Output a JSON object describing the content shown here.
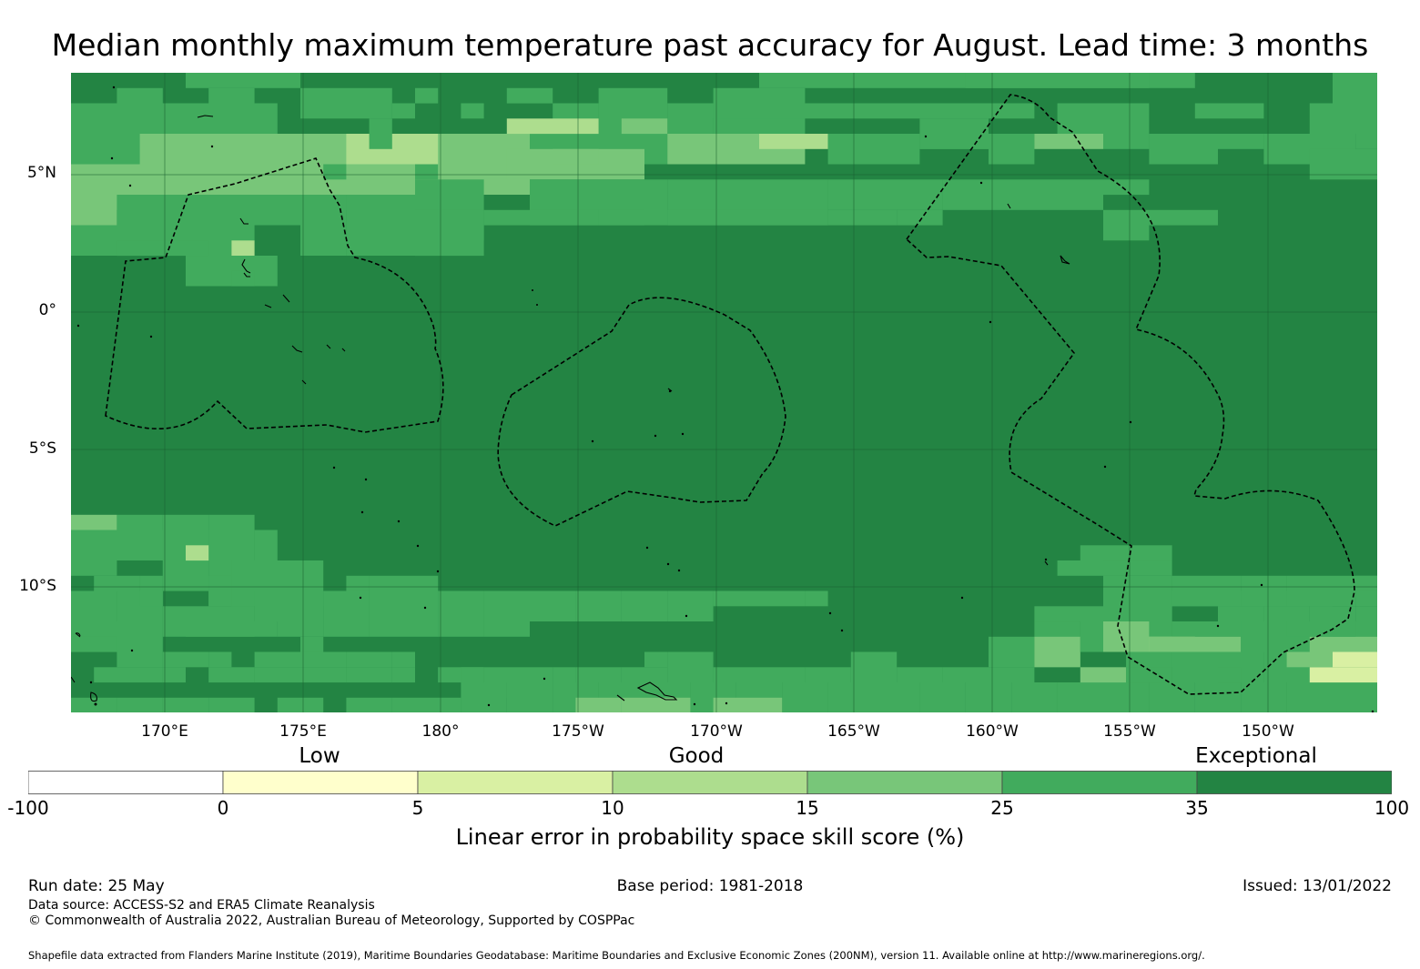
{
  "title": "Median monthly maximum temperature past accuracy for August. Lead time: 3 months",
  "map": {
    "lat_labels": [
      "5°N",
      "0°",
      "5°S",
      "10°S"
    ],
    "lon_labels": [
      "170°E",
      "175°E",
      "180°",
      "175°W",
      "170°W",
      "165°W",
      "160°W",
      "155°W",
      "150°W"
    ],
    "background_color": "#238443",
    "palette": {
      "lt0": "#ffffff",
      "p0_5": "#ffffcc",
      "p5_10": "#d9f0a3",
      "p10_15": "#addd8e",
      "p15_25": "#78c679",
      "p25_35": "#41ab5d",
      "p35_100": "#238443"
    }
  },
  "colorbar": {
    "categories": [
      "Low",
      "Good",
      "Exceptional"
    ],
    "ticks": [
      "-100",
      "0",
      "5",
      "10",
      "15",
      "25",
      "35",
      "100"
    ],
    "colors": [
      "#ffffff",
      "#ffffcc",
      "#d9f0a3",
      "#addd8e",
      "#78c679",
      "#41ab5d",
      "#238443"
    ],
    "label": "Linear error in probability space skill score (%)"
  },
  "footer": {
    "run_date": "Run date: 25 May",
    "base_period": "Base period: 1981-2018",
    "issued": "Issued: 13/01/2022",
    "data_source": "Data source: ACCESS-S2 and ERA5 Climate Reanalysis",
    "copyright": "© Commonwealth of Australia 2022, Australian Bureau of Meteorology, Supported by COSPPac",
    "shapefile": "Shapefile data extracted from Flanders Marine Institute (2019), Maritime Boundaries Geodatabase: Maritime Boundaries and Exclusive Economic Zones (200NM), version 11. Available online at http://www.marineregions.org/."
  }
}
